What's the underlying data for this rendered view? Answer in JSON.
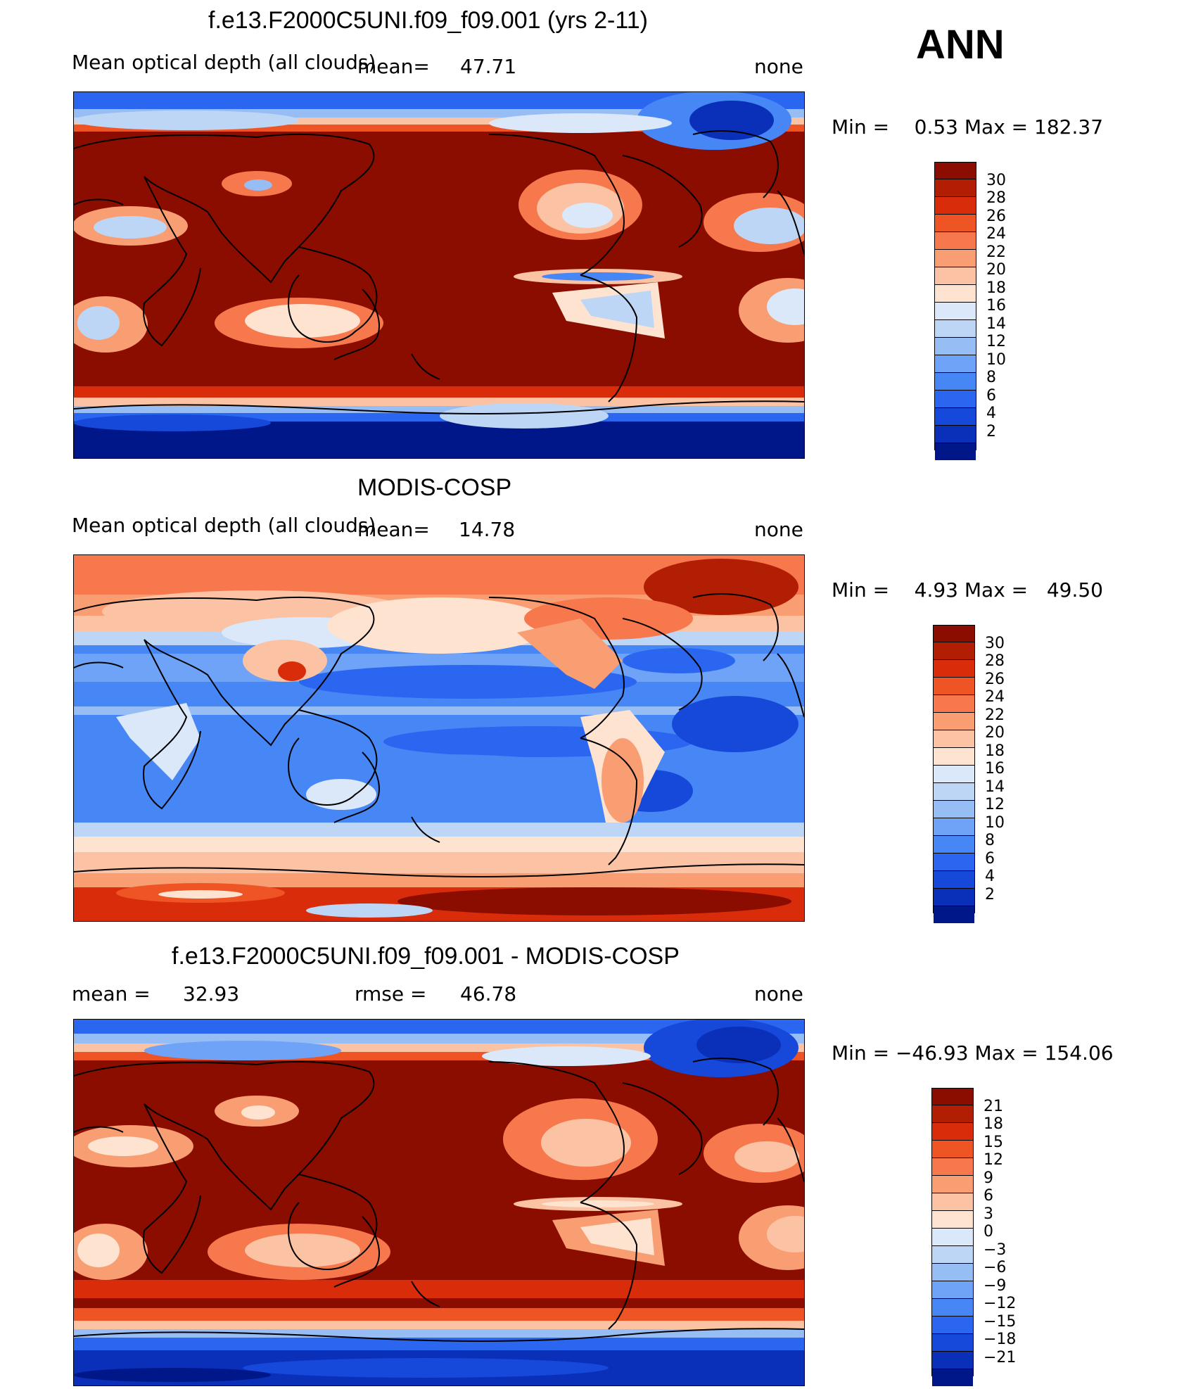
{
  "season": "ANN",
  "colors": {
    "panel": [
      "#00178a",
      "#0a2fb8",
      "#1648da",
      "#2a66f0",
      "#4686f5",
      "#6ea3f7",
      "#97bdf5",
      "#bdd6f6",
      "#dbe8fa",
      "#fde3d0",
      "#fbc3a3",
      "#f99e73",
      "#f6784c",
      "#ef5424",
      "#d82c0b",
      "#b21e04",
      "#8b0d00"
    ],
    "coast": "#000000"
  },
  "panels": [
    {
      "title": "f.e13.F2000C5UNI.f09_f09.001 (yrs 2-11)",
      "left_label": "Mean optical depth (all clouds)",
      "mean_label": "mean=",
      "mean_value": "47.71",
      "units": "none",
      "minmax": "Min =    0.53 Max = 182.37",
      "colorbar_ticks": [
        "30",
        "28",
        "26",
        "24",
        "22",
        "20",
        "18",
        "16",
        "14",
        "12",
        "10",
        "8",
        "6",
        "4",
        "2"
      ]
    },
    {
      "title": "MODIS-COSP",
      "left_label": "Mean optical depth (all clouds)",
      "mean_label": "mean=",
      "mean_value": "14.78",
      "units": "none",
      "minmax": "Min =    4.93 Max =   49.50",
      "colorbar_ticks": [
        "30",
        "28",
        "26",
        "24",
        "22",
        "20",
        "18",
        "16",
        "14",
        "12",
        "10",
        "8",
        "6",
        "4",
        "2"
      ]
    },
    {
      "title": "f.e13.F2000C5UNI.f09_f09.001 - MODIS-COSP",
      "mean_label": "mean =",
      "mean_value": "32.93",
      "rmse_label": "rmse =",
      "rmse_value": "46.78",
      "units": "none",
      "minmax": "Min = −46.93 Max = 154.06",
      "colorbar_ticks": [
        "21",
        "18",
        "15",
        "12",
        "9",
        "6",
        "3",
        "0",
        "−3",
        "−6",
        "−9",
        "−12",
        "−15",
        "−18",
        "−21"
      ]
    }
  ]
}
